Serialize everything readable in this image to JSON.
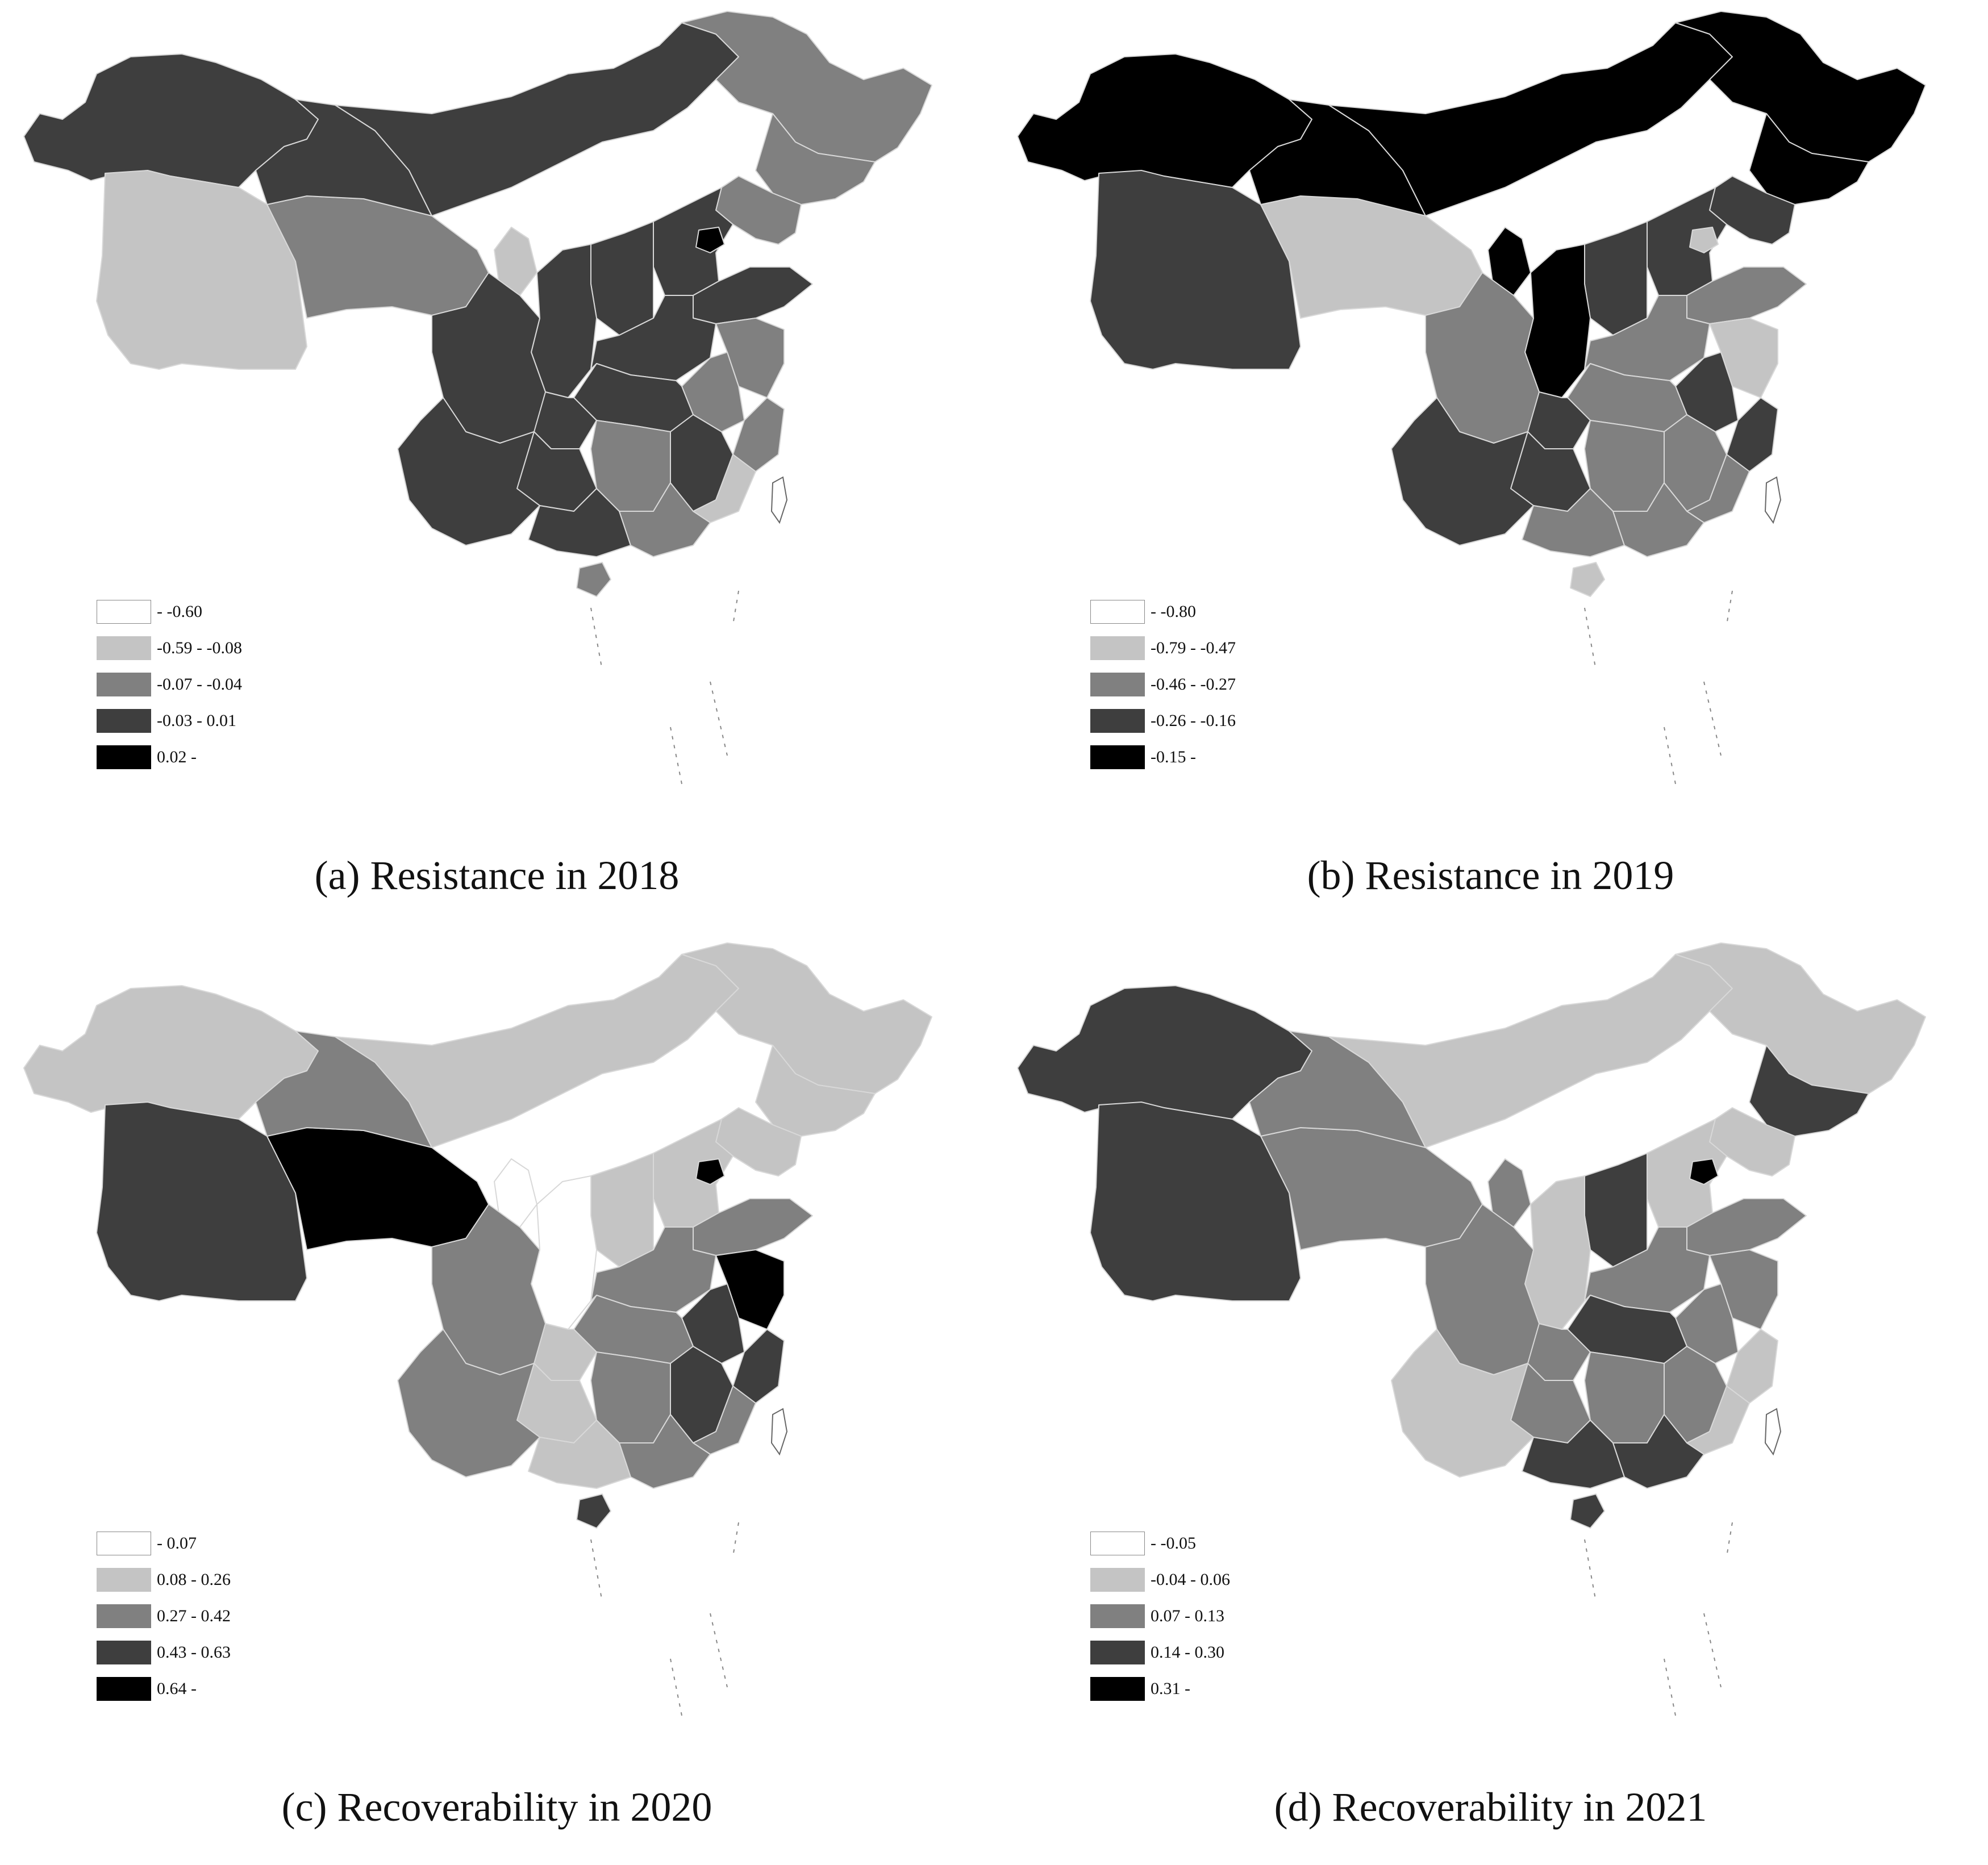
{
  "colors": {
    "class1": "#ffffff",
    "class2": "#c4c4c4",
    "class3": "#808080",
    "class4": "#3e3e3e",
    "class5": "#000000",
    "border": "#d8d8d8"
  },
  "panels": [
    {
      "caption": "(a) Resistance in 2018",
      "legend": [
        "- -0.60",
        "-0.59 - -0.08",
        "-0.07 - -0.04",
        "-0.03 - 0.01",
        "0.02 -"
      ]
    },
    {
      "caption": "(b) Resistance in 2019",
      "legend": [
        "- -0.80",
        "-0.79 - -0.47",
        "-0.46 - -0.27",
        "-0.26 - -0.16",
        "-0.15 -"
      ]
    },
    {
      "caption": "(c) Recoverability in 2020",
      "legend": [
        "- 0.07",
        "0.08 - 0.26",
        "0.27 - 0.42",
        "0.43 - 0.63",
        "0.64 -"
      ]
    },
    {
      "caption": "(d) Recoverability in 2021",
      "legend": [
        "- -0.05",
        "-0.04 - 0.06",
        "0.07 - 0.13",
        "0.14 - 0.30",
        "0.31 -"
      ]
    }
  ]
}
